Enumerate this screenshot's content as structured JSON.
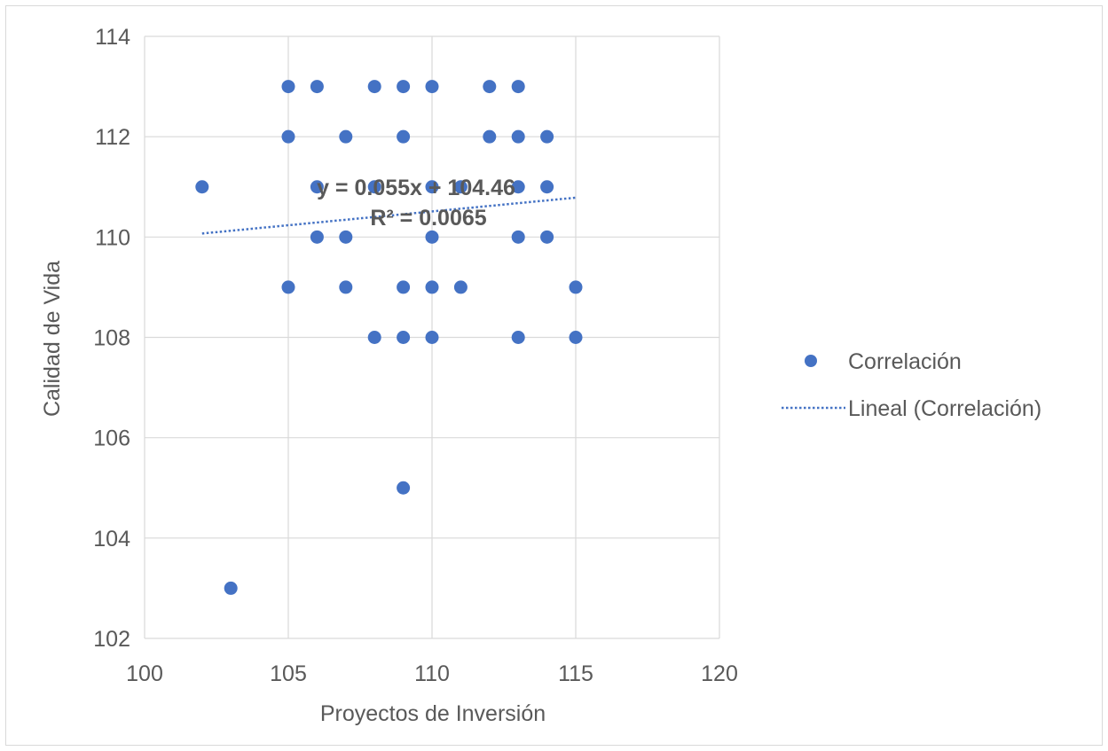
{
  "chart_data": {
    "type": "scatter",
    "title": "",
    "xlabel": "Proyectos de Inversión",
    "ylabel": "Calidad de Vida",
    "xlim": [
      100,
      120
    ],
    "ylim": [
      102,
      114
    ],
    "xticks": [
      "100",
      "105",
      "110",
      "115",
      "120"
    ],
    "yticks": [
      "102",
      "104",
      "106",
      "108",
      "110",
      "112",
      "114"
    ],
    "grid": true,
    "legend_position": "right",
    "series": [
      {
        "name": "Correlación",
        "color": "#4472c4",
        "points": [
          [
            102,
            111
          ],
          [
            103,
            103
          ],
          [
            105,
            113
          ],
          [
            105,
            112
          ],
          [
            105,
            109
          ],
          [
            106,
            113
          ],
          [
            106,
            111
          ],
          [
            106,
            110
          ],
          [
            107,
            112
          ],
          [
            107,
            110
          ],
          [
            107,
            109
          ],
          [
            108,
            113
          ],
          [
            108,
            111
          ],
          [
            108,
            108
          ],
          [
            109,
            113
          ],
          [
            109,
            112
          ],
          [
            109,
            109
          ],
          [
            109,
            108
          ],
          [
            109,
            105
          ],
          [
            110,
            113
          ],
          [
            110,
            111
          ],
          [
            110,
            110
          ],
          [
            110,
            109
          ],
          [
            110,
            108
          ],
          [
            111,
            111
          ],
          [
            111,
            109
          ],
          [
            112,
            113
          ],
          [
            112,
            112
          ],
          [
            113,
            113
          ],
          [
            113,
            112
          ],
          [
            113,
            111
          ],
          [
            113,
            110
          ],
          [
            113,
            108
          ],
          [
            114,
            112
          ],
          [
            114,
            111
          ],
          [
            114,
            110
          ],
          [
            115,
            109
          ],
          [
            115,
            108
          ]
        ]
      }
    ],
    "trendline": {
      "name": "Lineal (Correlación)",
      "type": "linear",
      "style": "dotted",
      "color": "#4472c4",
      "slope": 0.055,
      "intercept": 104.46,
      "x_range": [
        102,
        115
      ],
      "equation_label": "y = 0.055x + 104.46",
      "r2_label": "R² = 0.0065"
    }
  }
}
